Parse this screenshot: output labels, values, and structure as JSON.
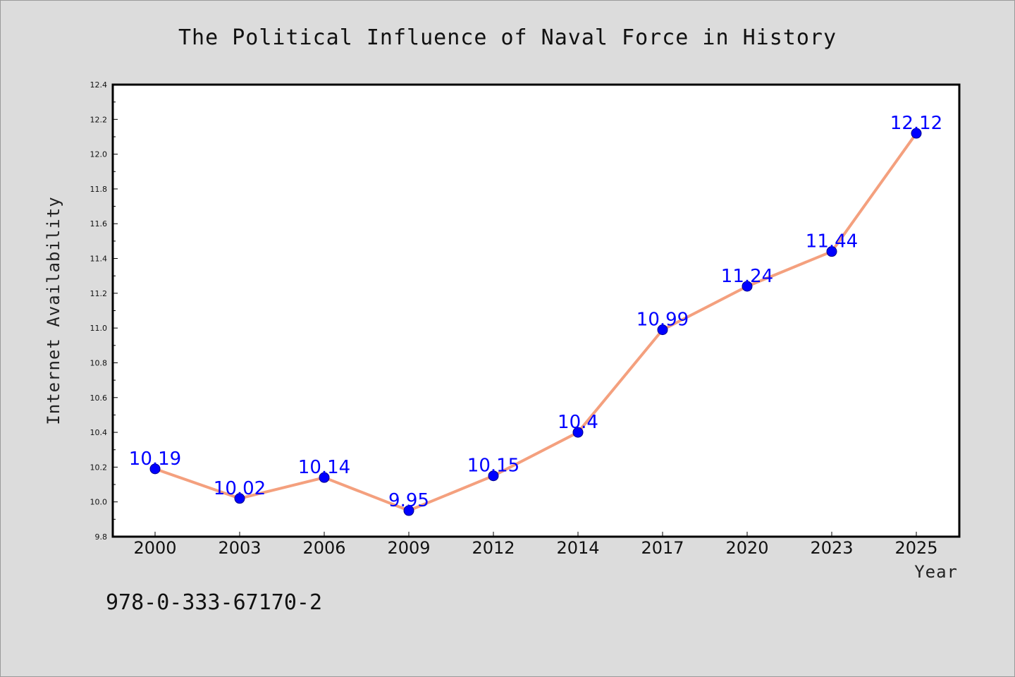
{
  "chart_data": {
    "type": "line",
    "title": "The Political Influence of Naval Force in History",
    "xlabel": "Year",
    "ylabel": "Internet Availability",
    "categories": [
      "2000",
      "2003",
      "2006",
      "2009",
      "2012",
      "2014",
      "2017",
      "2020",
      "2023",
      "2025"
    ],
    "series": [
      {
        "values": [
          10.19,
          10.02,
          10.14,
          9.95,
          10.15,
          10.4,
          10.99,
          11.24,
          11.44,
          12.12
        ],
        "data_labels": [
          "10.19",
          "10.02",
          "10.14",
          "9.95",
          "10.15",
          "10.4",
          "10.99",
          "11.24",
          "11.44",
          "12.12"
        ],
        "line_color": "#f4a07e",
        "marker_color": "#0000ff"
      }
    ],
    "ylim": [
      9.8,
      12.4
    ],
    "yticks": [
      "9.8",
      "10.0",
      "10.2",
      "10.4",
      "10.6",
      "10.8",
      "11.0",
      "11.2",
      "11.4",
      "11.6",
      "11.8",
      "12.0",
      "12.2",
      "12.4"
    ],
    "grid": false,
    "legend": "none"
  },
  "footer": {
    "isbn": "978-0-333-67170-2"
  },
  "colors": {
    "background": "#dcdcdc",
    "plot_background": "#ffffff",
    "data_label": "#0000ff"
  }
}
